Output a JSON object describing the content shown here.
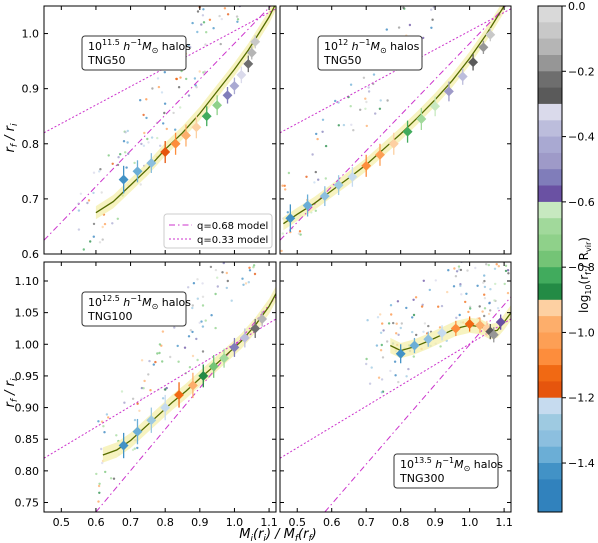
{
  "figure": {
    "ylabel": "r_f / r_i",
    "xlabel": "M_i(r_i) / M_f(r_f)",
    "colorbar_label": "log10(r_f / R_vir)"
  },
  "colors": {
    "model_line": "#cc33cc",
    "trend_line": "#556b00",
    "trend_band": "#f5f0b0",
    "scatter_gray": "#9a9a9a"
  },
  "legend": {
    "entries": [
      {
        "label": "q=0.68 model",
        "style": "dashdot"
      },
      {
        "label": "q=0.33 model",
        "style": "dotted"
      }
    ]
  },
  "colorbar": {
    "ticks": [
      "0.0",
      "−0.2",
      "−0.4",
      "−0.6",
      "−0.8",
      "−1.0",
      "−1.2",
      "−1.4"
    ],
    "tick_values": [
      0.0,
      -0.2,
      -0.4,
      -0.6,
      -0.8,
      -1.0,
      -1.2,
      -1.4
    ],
    "range": [
      -1.55,
      0.0
    ],
    "blocks": [
      {
        "from": 0.0,
        "to": -0.05,
        "color": "#d9d9d9"
      },
      {
        "from": -0.05,
        "to": -0.1,
        "color": "#c8c8c8"
      },
      {
        "from": -0.1,
        "to": -0.15,
        "color": "#b5b5b5"
      },
      {
        "from": -0.15,
        "to": -0.2,
        "color": "#969696"
      },
      {
        "from": -0.2,
        "to": -0.25,
        "color": "#6e6e6e"
      },
      {
        "from": -0.25,
        "to": -0.3,
        "color": "#5a5a5a"
      },
      {
        "from": -0.3,
        "to": -0.35,
        "color": "#dadaeb"
      },
      {
        "from": -0.35,
        "to": -0.4,
        "color": "#bcbddc"
      },
      {
        "from": -0.4,
        "to": -0.45,
        "color": "#a9a9d2"
      },
      {
        "from": -0.45,
        "to": -0.5,
        "color": "#9e9ac8"
      },
      {
        "from": -0.5,
        "to": -0.55,
        "color": "#807dba"
      },
      {
        "from": -0.55,
        "to": -0.6,
        "color": "#6a51a3"
      },
      {
        "from": -0.6,
        "to": -0.65,
        "color": "#c7e9c0"
      },
      {
        "from": -0.65,
        "to": -0.7,
        "color": "#a1d99b"
      },
      {
        "from": -0.7,
        "to": -0.75,
        "color": "#8fd18a"
      },
      {
        "from": -0.75,
        "to": -0.8,
        "color": "#74c476"
      },
      {
        "from": -0.8,
        "to": -0.85,
        "color": "#41ab5d"
      },
      {
        "from": -0.85,
        "to": -0.9,
        "color": "#238b45"
      },
      {
        "from": -0.9,
        "to": -0.95,
        "color": "#fdd0a2"
      },
      {
        "from": -0.95,
        "to": -1.0,
        "color": "#fdae6b"
      },
      {
        "from": -1.0,
        "to": -1.05,
        "color": "#fd9f55"
      },
      {
        "from": -1.05,
        "to": -1.1,
        "color": "#fd8d3c"
      },
      {
        "from": -1.1,
        "to": -1.15,
        "color": "#f16913"
      },
      {
        "from": -1.15,
        "to": -1.2,
        "color": "#e6550d"
      },
      {
        "from": -1.2,
        "to": -1.25,
        "color": "#c6dbef"
      },
      {
        "from": -1.25,
        "to": -1.3,
        "color": "#9ecae1"
      },
      {
        "from": -1.3,
        "to": -1.35,
        "color": "#8cbfdf"
      },
      {
        "from": -1.35,
        "to": -1.4,
        "color": "#6baed6"
      },
      {
        "from": -1.4,
        "to": -1.45,
        "color": "#4292c6"
      },
      {
        "from": -1.45,
        "to": -1.55,
        "color": "#3182bd"
      }
    ]
  },
  "chart_data": [
    {
      "type": "scatter",
      "panel": "top-left",
      "annotation": [
        "10^11.5 h^-1 M⊙ halos",
        "TNG50"
      ],
      "xlim": [
        0.45,
        1.12
      ],
      "ylim": [
        0.6,
        1.05
      ],
      "yticks": [
        0.6,
        0.7,
        0.8,
        0.9,
        1.0
      ],
      "legend": "bottom-right",
      "model_lines": [
        {
          "name": "q=0.68 model",
          "points": [
            [
              0.45,
              0.625
            ],
            [
              1.12,
              1.06
            ]
          ]
        },
        {
          "name": "q=0.33 model",
          "points": [
            [
              0.45,
              0.82
            ],
            [
              1.12,
              1.045
            ]
          ]
        }
      ],
      "trend": [
        [
          0.6,
          0.675
        ],
        [
          0.65,
          0.695
        ],
        [
          0.7,
          0.725
        ],
        [
          0.75,
          0.755
        ],
        [
          0.8,
          0.79
        ],
        [
          0.85,
          0.82
        ],
        [
          0.9,
          0.855
        ],
        [
          0.95,
          0.895
        ],
        [
          1.0,
          0.935
        ],
        [
          1.04,
          0.97
        ],
        [
          1.07,
          1.0
        ],
        [
          1.1,
          1.03
        ],
        [
          1.12,
          1.055
        ]
      ],
      "binned": [
        {
          "x": 0.68,
          "y": 0.735,
          "err": 0.025,
          "c": -1.45
        },
        {
          "x": 0.72,
          "y": 0.75,
          "err": 0.02,
          "c": -1.4
        },
        {
          "x": 0.76,
          "y": 0.765,
          "err": 0.018,
          "c": -1.32
        },
        {
          "x": 0.8,
          "y": 0.785,
          "err": 0.02,
          "c": -1.2
        },
        {
          "x": 0.83,
          "y": 0.8,
          "err": 0.02,
          "c": -1.1
        },
        {
          "x": 0.86,
          "y": 0.815,
          "err": 0.02,
          "c": -1.0
        },
        {
          "x": 0.89,
          "y": 0.83,
          "err": 0.02,
          "c": -0.92
        },
        {
          "x": 0.92,
          "y": 0.85,
          "err": 0.018,
          "c": -0.85
        },
        {
          "x": 0.95,
          "y": 0.87,
          "err": 0.018,
          "c": -0.72
        },
        {
          "x": 0.98,
          "y": 0.888,
          "err": 0.015,
          "c": -0.55
        },
        {
          "x": 1.0,
          "y": 0.905,
          "err": 0.015,
          "c": -0.42
        },
        {
          "x": 1.02,
          "y": 0.925,
          "err": 0.015,
          "c": -0.32
        },
        {
          "x": 1.04,
          "y": 0.945,
          "err": 0.015,
          "c": -0.22
        },
        {
          "x": 1.05,
          "y": 0.965,
          "err": 0.012,
          "c": -0.15
        },
        {
          "x": 1.06,
          "y": 0.985,
          "err": 0.012,
          "c": -0.08
        }
      ],
      "scatter_region": {
        "x": [
          0.55,
          1.12
        ],
        "y": [
          0.6,
          1.05
        ],
        "slope": 1.0
      }
    },
    {
      "type": "scatter",
      "panel": "top-right",
      "annotation": [
        "10^12 h^-1 M⊙ halos",
        "TNG50"
      ],
      "xlim": [
        0.45,
        1.12
      ],
      "ylim": [
        0.6,
        1.05
      ],
      "yticks": [
        0.6,
        0.7,
        0.8,
        0.9,
        1.0
      ],
      "model_lines": [
        {
          "name": "q=0.68 model",
          "points": [
            [
              0.45,
              0.625
            ],
            [
              1.12,
              1.06
            ]
          ]
        },
        {
          "name": "q=0.33 model",
          "points": [
            [
              0.45,
              0.82
            ],
            [
              1.12,
              1.045
            ]
          ]
        }
      ],
      "trend": [
        [
          0.46,
          0.655
        ],
        [
          0.5,
          0.672
        ],
        [
          0.55,
          0.692
        ],
        [
          0.6,
          0.715
        ],
        [
          0.65,
          0.738
        ],
        [
          0.7,
          0.762
        ],
        [
          0.75,
          0.79
        ],
        [
          0.8,
          0.818
        ],
        [
          0.85,
          0.848
        ],
        [
          0.9,
          0.88
        ],
        [
          0.95,
          0.915
        ],
        [
          1.0,
          0.955
        ],
        [
          1.05,
          1.0
        ],
        [
          1.08,
          1.03
        ],
        [
          1.1,
          1.05
        ]
      ],
      "binned": [
        {
          "x": 0.48,
          "y": 0.665,
          "err": 0.025,
          "c": -1.45
        },
        {
          "x": 0.53,
          "y": 0.688,
          "err": 0.02,
          "c": -1.4
        },
        {
          "x": 0.58,
          "y": 0.705,
          "err": 0.018,
          "c": -1.35
        },
        {
          "x": 0.62,
          "y": 0.725,
          "err": 0.018,
          "c": -1.3
        },
        {
          "x": 0.66,
          "y": 0.74,
          "err": 0.018,
          "c": -1.25
        },
        {
          "x": 0.7,
          "y": 0.76,
          "err": 0.02,
          "c": -1.1
        },
        {
          "x": 0.74,
          "y": 0.78,
          "err": 0.02,
          "c": -1.05
        },
        {
          "x": 0.78,
          "y": 0.8,
          "err": 0.02,
          "c": -0.95
        },
        {
          "x": 0.82,
          "y": 0.822,
          "err": 0.02,
          "c": -0.85
        },
        {
          "x": 0.86,
          "y": 0.845,
          "err": 0.02,
          "c": -0.7
        },
        {
          "x": 0.9,
          "y": 0.868,
          "err": 0.018,
          "c": -0.62
        },
        {
          "x": 0.94,
          "y": 0.895,
          "err": 0.018,
          "c": -0.5
        },
        {
          "x": 0.98,
          "y": 0.922,
          "err": 0.015,
          "c": -0.4
        },
        {
          "x": 1.01,
          "y": 0.948,
          "err": 0.015,
          "c": -0.3
        },
        {
          "x": 1.04,
          "y": 0.975,
          "err": 0.012,
          "c": -0.2
        },
        {
          "x": 1.06,
          "y": 0.998,
          "err": 0.012,
          "c": -0.1
        }
      ],
      "scatter_region": {
        "x": [
          0.45,
          1.12
        ],
        "y": [
          0.6,
          1.05
        ],
        "slope": 1.0
      }
    },
    {
      "type": "scatter",
      "panel": "bottom-left",
      "annotation": [
        "10^12.5 h^-1 M⊙ halos",
        "TNG100"
      ],
      "xlim": [
        0.45,
        1.12
      ],
      "ylim": [
        0.735,
        1.13
      ],
      "yticks": [
        0.75,
        0.8,
        0.85,
        0.9,
        0.95,
        1.0,
        1.05,
        1.1
      ],
      "model_lines": [
        {
          "name": "q=0.68 model",
          "points": [
            [
              0.6,
              0.735
            ],
            [
              1.12,
              1.075
            ]
          ]
        },
        {
          "name": "q=0.33 model",
          "points": [
            [
              0.45,
              0.82
            ],
            [
              1.12,
              1.04
            ]
          ]
        }
      ],
      "trend": [
        [
          0.62,
          0.825
        ],
        [
          0.66,
          0.833
        ],
        [
          0.7,
          0.848
        ],
        [
          0.74,
          0.868
        ],
        [
          0.78,
          0.888
        ],
        [
          0.82,
          0.908
        ],
        [
          0.86,
          0.926
        ],
        [
          0.9,
          0.946
        ],
        [
          0.94,
          0.965
        ],
        [
          0.98,
          0.985
        ],
        [
          1.02,
          1.005
        ],
        [
          1.06,
          1.03
        ],
        [
          1.1,
          1.06
        ],
        [
          1.12,
          1.08
        ]
      ],
      "binned": [
        {
          "x": 0.68,
          "y": 0.84,
          "err": 0.02,
          "c": -1.45
        },
        {
          "x": 0.72,
          "y": 0.862,
          "err": 0.02,
          "c": -1.4
        },
        {
          "x": 0.76,
          "y": 0.88,
          "err": 0.02,
          "c": -1.3
        },
        {
          "x": 0.8,
          "y": 0.9,
          "err": 0.02,
          "c": -1.25
        },
        {
          "x": 0.84,
          "y": 0.92,
          "err": 0.02,
          "c": -1.15
        },
        {
          "x": 0.88,
          "y": 0.935,
          "err": 0.02,
          "c": -1.0
        },
        {
          "x": 0.91,
          "y": 0.95,
          "err": 0.018,
          "c": -0.9
        },
        {
          "x": 0.94,
          "y": 0.965,
          "err": 0.018,
          "c": -0.8
        },
        {
          "x": 0.97,
          "y": 0.978,
          "err": 0.015,
          "c": -0.7
        },
        {
          "x": 1.0,
          "y": 0.995,
          "err": 0.015,
          "c": -0.55
        },
        {
          "x": 1.03,
          "y": 1.01,
          "err": 0.015,
          "c": -0.4
        },
        {
          "x": 1.06,
          "y": 1.025,
          "err": 0.015,
          "c": -0.25
        },
        {
          "x": 1.08,
          "y": 1.04,
          "err": 0.012,
          "c": -0.12
        }
      ],
      "scatter_region": {
        "x": [
          0.6,
          1.12
        ],
        "y": [
          0.74,
          1.13
        ],
        "slope": 0.8
      }
    },
    {
      "type": "scatter",
      "panel": "bottom-right",
      "annotation": [
        "10^13.5 h^-1 M⊙ halos",
        "TNG300"
      ],
      "xlim": [
        0.45,
        1.12
      ],
      "ylim": [
        0.735,
        1.13
      ],
      "yticks": [
        0.75,
        0.8,
        0.85,
        0.9,
        0.95,
        1.0,
        1.05,
        1.1
      ],
      "model_lines": [
        {
          "name": "q=0.68 model",
          "points": [
            [
              0.58,
              0.735
            ],
            [
              1.12,
              1.075
            ]
          ]
        },
        {
          "name": "q=0.33 model",
          "points": [
            [
              0.45,
              0.82
            ],
            [
              1.12,
              1.04
            ]
          ]
        }
      ],
      "trend": [
        [
          0.77,
          0.998
        ],
        [
          0.8,
          0.99
        ],
        [
          0.84,
          0.996
        ],
        [
          0.88,
          1.005
        ],
        [
          0.92,
          1.015
        ],
        [
          0.96,
          1.025
        ],
        [
          1.0,
          1.03
        ],
        [
          1.03,
          1.028
        ],
        [
          1.06,
          1.02
        ],
        [
          1.08,
          1.022
        ],
        [
          1.1,
          1.035
        ],
        [
          1.12,
          1.05
        ]
      ],
      "binned": [
        {
          "x": 0.8,
          "y": 0.985,
          "err": 0.015,
          "c": -1.45
        },
        {
          "x": 0.84,
          "y": 0.998,
          "err": 0.012,
          "c": -1.4
        },
        {
          "x": 0.88,
          "y": 1.008,
          "err": 0.012,
          "c": -1.35
        },
        {
          "x": 0.92,
          "y": 1.018,
          "err": 0.012,
          "c": -1.25
        },
        {
          "x": 0.96,
          "y": 1.025,
          "err": 0.012,
          "c": -1.1
        },
        {
          "x": 1.0,
          "y": 1.032,
          "err": 0.012,
          "c": -1.15
        },
        {
          "x": 1.03,
          "y": 1.03,
          "err": 0.012,
          "c": -1.0
        },
        {
          "x": 1.05,
          "y": 1.025,
          "err": 0.012,
          "c": -0.95
        },
        {
          "x": 1.06,
          "y": 1.02,
          "err": 0.012,
          "c": -0.3
        },
        {
          "x": 1.07,
          "y": 1.015,
          "err": 0.012,
          "c": -0.2
        },
        {
          "x": 1.09,
          "y": 1.035,
          "err": 0.012,
          "c": -0.6
        }
      ],
      "scatter_region": {
        "x": [
          0.7,
          1.12
        ],
        "y": [
          0.85,
          1.13
        ],
        "slope": 0.4
      }
    }
  ],
  "xaxis": {
    "ticks": [
      0.5,
      0.6,
      0.7,
      0.8,
      0.9,
      1.0,
      1.1
    ]
  }
}
